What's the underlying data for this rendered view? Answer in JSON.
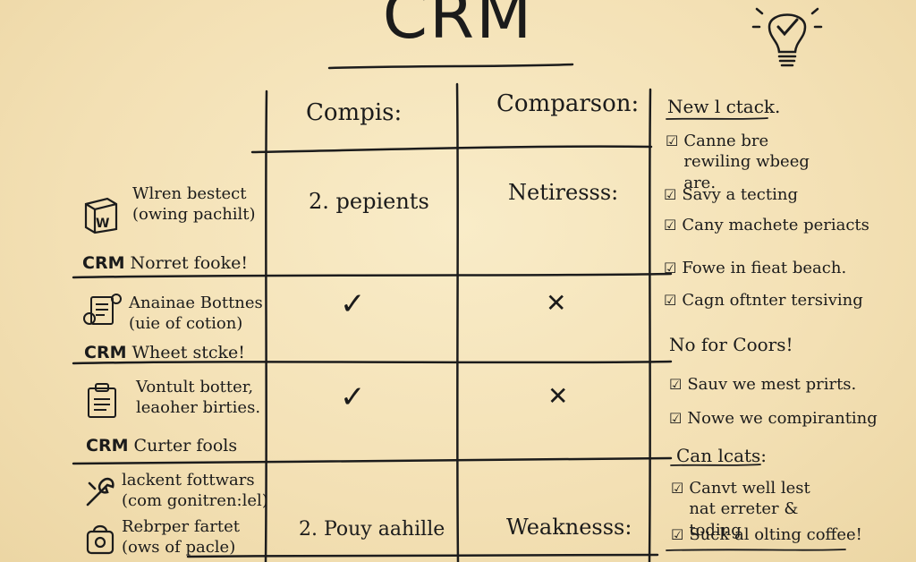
{
  "title": "CRM",
  "table": {
    "headers": [
      "Compis:",
      "Comparson:"
    ],
    "rows": [
      {
        "label_line1": "Wlren bestect",
        "label_line2": "(owing pachilt)",
        "icon": "box-w-icon",
        "col1": "2. pepients",
        "col2": "Netiresss:",
        "crm_prefix": "CRM",
        "crm_text": "Norret fooke!"
      },
      {
        "label_line1": "Anainae Bottnes",
        "label_line2": "(uie of cotion)",
        "icon": "gear-document-icon",
        "col1": "✓",
        "col2": "✕",
        "crm_prefix": "CRM",
        "crm_text": "Wheet stcke!"
      },
      {
        "label_line1": "Vontult botter,",
        "label_line2": "leaoher birties.",
        "icon": "clipboard-icon",
        "col1": "✓",
        "col2": "✕",
        "crm_prefix": "CRM",
        "crm_text": "Curter fools"
      },
      {
        "label_line1": "lackent fottwars",
        "label_line2": "(com gonitren:lel)",
        "icon": "wrench-icon",
        "col1": "2. Pouy aahille",
        "col2": "Weaknesss:"
      },
      {
        "label_line1": "Rebrper fartet",
        "label_line2": "(ows of pacle)",
        "icon": "bag-icon"
      }
    ]
  },
  "right_panel": {
    "sections": [
      {
        "heading": "New l ctack.",
        "items": [
          "Canne bre rewiling wbeeg are.",
          "Savy a tecting",
          "Cany machete periacts",
          "Fowe in fieat beach.",
          "Cagn oftnter tersiving"
        ]
      },
      {
        "heading": "No for Coors!",
        "items": [
          "Sauv we mest prirts.",
          "Nowe we compiranting"
        ]
      },
      {
        "heading": "Can lcats:",
        "items": [
          "Canvt well lest nat erreter & toding",
          "Suck al olting coffee!"
        ]
      }
    ],
    "checkbox_glyph": "☑"
  },
  "icons": {
    "lightbulb": "lightbulb-check-icon"
  }
}
